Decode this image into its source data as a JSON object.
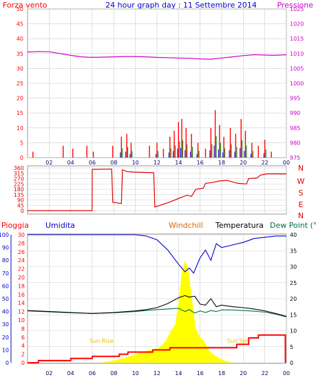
{
  "header": {
    "left_label": "Forza vento",
    "title": "24 hour graph day : 11 Settembre 2014",
    "right_label": "Pressione"
  },
  "colors": {
    "wind": "#ff0000",
    "gust": "#ff0000",
    "wind_blue": "#0000ff",
    "wind_green": "#008000",
    "pressure": "#cc00cc",
    "grid": "#cccccc",
    "border": "#999999",
    "direction": "#dd0000",
    "rain": "#ff0000",
    "humidity": "#0000cc",
    "windchill": "#dd6600",
    "temperature": "#000000",
    "dewpoint": "#007040",
    "solar": "#ffff00",
    "axis_blue": "#0000cc"
  },
  "lower_labels": {
    "rain": "Pioggia",
    "humidity": "Umidita",
    "windchill": "Windchill",
    "temperature": "Temperatura",
    "dewpoint": "Dew Point (°C",
    "sunrise": "Sun Rise",
    "sunset": "Sun Set",
    "sunset_x": "Sun Set"
  },
  "chart_data": [
    {
      "type": "line",
      "panel": "wind-pressure",
      "x_ticks": [
        "02",
        "04",
        "06",
        "08",
        "10",
        "12",
        "14",
        "16",
        "18",
        "20",
        "22",
        "00"
      ],
      "left_axis": {
        "label": "Forza vento",
        "ticks": [
          0,
          5,
          10,
          15,
          20,
          25,
          30,
          35,
          40,
          45,
          50
        ],
        "ylim": [
          0,
          50
        ]
      },
      "right_axis": {
        "label": "Pressione",
        "ticks": [
          975,
          980,
          985,
          990,
          995,
          1000,
          1005,
          1010,
          1015,
          1020,
          1025
        ],
        "ylim": [
          975,
          1025
        ]
      },
      "series": [
        {
          "name": "Pressione",
          "axis": "right",
          "x": [
            0,
            1,
            2,
            3,
            4,
            5,
            6,
            7,
            8,
            9,
            10,
            11,
            12,
            13,
            14,
            15,
            16,
            17,
            18,
            19,
            20,
            21,
            22,
            23,
            24
          ],
          "values": [
            1010.5,
            1010.7,
            1010.6,
            1010.0,
            1009.4,
            1008.9,
            1008.7,
            1008.8,
            1008.9,
            1009.0,
            1009.0,
            1008.9,
            1008.7,
            1008.6,
            1008.5,
            1008.4,
            1008.2,
            1008.1,
            1008.5,
            1008.9,
            1009.3,
            1009.6,
            1009.5,
            1009.4,
            1009.6
          ]
        },
        {
          "name": "Forza vento",
          "axis": "left",
          "x": [
            0.5,
            3.3,
            4.2,
            5.5,
            6.1,
            7.9,
            8.7,
            9.2,
            9.6,
            11.3,
            12.0,
            12.6,
            13.2,
            13.6,
            14.0,
            14.3,
            14.7,
            15.2,
            15.8,
            16.5,
            17.0,
            17.4,
            17.8,
            18.2,
            18.8,
            19.3,
            19.8,
            20.2,
            20.8,
            21.4,
            22.0,
            22.6
          ],
          "values": [
            2,
            4,
            3,
            4,
            2,
            4,
            7,
            8,
            5,
            4,
            5,
            3,
            7,
            9,
            12,
            13,
            10,
            8,
            5,
            3,
            10,
            16,
            11,
            7,
            10,
            8,
            13,
            9,
            5,
            4,
            6,
            2
          ]
        }
      ]
    },
    {
      "type": "line",
      "panel": "wind-direction",
      "y_ticks": [
        0,
        45,
        90,
        135,
        180,
        225,
        270,
        315,
        360
      ],
      "ylim": [
        0,
        360
      ],
      "compass": [
        "N",
        "W",
        "S",
        "E",
        "N"
      ],
      "x": [
        0,
        5.99,
        6.0,
        7.8,
        7.9,
        8.7,
        8.8,
        9.2,
        9.8,
        11.7,
        11.8,
        12.8,
        13.4,
        14.2,
        14.8,
        15.2,
        15.6,
        16.3,
        16.5,
        17.3,
        17.8,
        18.5,
        19.5,
        20.3,
        20.5,
        21.3,
        21.6,
        22.2,
        24
      ],
      "values": [
        0,
        0,
        348,
        350,
        70,
        60,
        345,
        330,
        325,
        320,
        30,
        60,
        80,
        110,
        130,
        120,
        180,
        190,
        230,
        240,
        250,
        255,
        230,
        225,
        270,
        275,
        300,
        310,
        310
      ]
    },
    {
      "type": "line",
      "panel": "rain-humidity-temperature",
      "x_ticks": [
        "02",
        "04",
        "06",
        "08",
        "10",
        "12",
        "14",
        "16",
        "18",
        "20",
        "22",
        "00"
      ],
      "left_axis_rain": {
        "label": "Pioggia",
        "ticks": [
          0,
          2,
          4,
          6,
          8,
          10,
          12,
          14,
          16,
          18,
          20,
          22,
          24,
          26,
          28,
          30
        ],
        "ylim": [
          0,
          30
        ]
      },
      "left_axis_humidity": {
        "label": "Umidita",
        "ticks": [
          0,
          10,
          20,
          30,
          40,
          50,
          60,
          70,
          80,
          90,
          100
        ],
        "ylim": [
          0,
          100
        ]
      },
      "right_axis": {
        "ticks": [
          0,
          5,
          10,
          15,
          20,
          25,
          30,
          35,
          40
        ],
        "ylim": [
          0,
          40
        ]
      },
      "series": [
        {
          "name": "Umidita",
          "axis": "humidity",
          "x": [
            0,
            2,
            4,
            6,
            8,
            10,
            11,
            12,
            13,
            14,
            14.6,
            15,
            15.4,
            16,
            16.5,
            17,
            17.5,
            18,
            19,
            20,
            21,
            22,
            23,
            24
          ],
          "values": [
            100,
            100,
            100,
            100,
            100,
            100,
            99,
            96,
            88,
            77,
            71,
            74,
            70,
            82,
            88,
            80,
            93,
            90,
            92,
            94,
            97,
            98,
            99,
            99
          ]
        },
        {
          "name": "Temperatura",
          "axis": "right",
          "x": [
            0,
            2,
            4,
            6,
            8,
            10,
            11,
            12,
            13,
            14,
            14.6,
            15,
            15.5,
            16,
            16.5,
            17,
            17.5,
            18,
            19,
            20,
            21,
            22,
            23,
            24
          ],
          "values": [
            16.3,
            16.0,
            15.7,
            15.4,
            15.7,
            16.2,
            16.6,
            17.2,
            18.5,
            20.3,
            21.0,
            20.5,
            20.8,
            18.3,
            18.0,
            20.0,
            17.5,
            18.0,
            17.5,
            17.2,
            16.8,
            16.2,
            15.4,
            14.5
          ]
        },
        {
          "name": "Dew Point (°C",
          "axis": "right",
          "x": [
            0,
            2,
            4,
            6,
            8,
            10,
            11,
            12,
            13,
            14,
            14.6,
            15,
            15.5,
            16,
            16.5,
            17,
            17.5,
            18,
            19,
            20,
            21,
            22,
            23,
            24
          ],
          "values": [
            16.2,
            15.9,
            15.6,
            15.4,
            15.6,
            16.0,
            16.3,
            16.6,
            16.8,
            17.0,
            16.0,
            16.6,
            15.5,
            16.2,
            15.7,
            16.3,
            16.0,
            16.5,
            16.5,
            16.3,
            16.1,
            15.8,
            15.2,
            14.3
          ]
        },
        {
          "name": "Pioggia",
          "axis": "rain",
          "x": [
            0,
            1,
            1.01,
            4,
            4.01,
            6,
            6.01,
            8.5,
            8.51,
            9.3,
            9.31,
            11.6,
            11.61,
            13.2,
            13.21,
            19.4,
            19.41,
            20.5,
            20.51,
            21.4,
            21.41,
            23.9,
            23.91
          ],
          "values": [
            0,
            0,
            0.5,
            0.5,
            1.0,
            1.0,
            1.5,
            1.5,
            2.0,
            2.0,
            2.5,
            2.5,
            3.0,
            3.0,
            3.5,
            3.5,
            4.3,
            4.3,
            5.8,
            5.8,
            6.5,
            6.5,
            0
          ]
        },
        {
          "name": "Solar",
          "axis": "rain",
          "x": [
            6.8,
            7.5,
            8.5,
            9.5,
            10.5,
            11.5,
            12.2,
            12.8,
            13.3,
            13.7,
            14.0,
            14.3,
            14.6,
            14.9,
            15.2,
            15.6,
            16.0,
            16.4,
            16.8,
            17.2,
            17.8,
            18.5,
            19.0
          ],
          "values": [
            0,
            0.3,
            0.8,
            1.5,
            2.5,
            3.0,
            3.5,
            5.0,
            7.5,
            9.0,
            14.0,
            21.0,
            24.0,
            22.0,
            16.0,
            8.0,
            6.0,
            5.0,
            3.0,
            2.0,
            1.0,
            0.3,
            0
          ]
        }
      ]
    }
  ]
}
